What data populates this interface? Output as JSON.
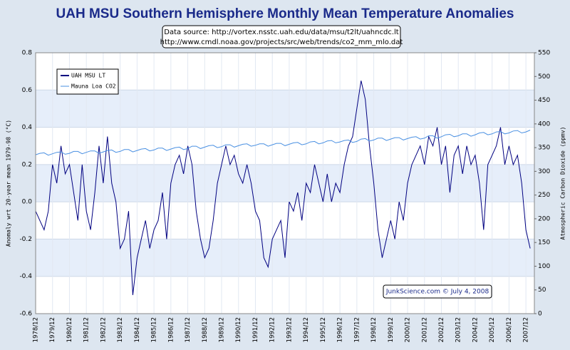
{
  "chart_data": {
    "type": "line",
    "title": "UAH MSU Southern Hemisphere Monthly Mean Temperature Anomalies",
    "subtitle": [
      "Data source: http://vortex.nsstc.uah.edu/data/msu/t2lt/uahncdc.lt",
      "http://www.cmdl.noaa.gov/projects/src/web/trends/co2_mm_mlo.dat"
    ],
    "y_label": "Anomaly wrt 20-year mean 1979-98 (°C)",
    "y2_label": "Atmospheric Carbon Dioxide (ppmv)",
    "annotations": [
      "JunkScience.com © July 4, 2008"
    ],
    "x": [
      "1978/12",
      "1979/03",
      "1979/06",
      "1979/09",
      "1979/12",
      "1980/03",
      "1980/06",
      "1980/09",
      "1980/12",
      "1981/03",
      "1981/06",
      "1981/09",
      "1981/12",
      "1982/03",
      "1982/06",
      "1982/09",
      "1982/12",
      "1983/03",
      "1983/06",
      "1983/09",
      "1983/12",
      "1984/03",
      "1984/06",
      "1984/09",
      "1984/12",
      "1985/03",
      "1985/06",
      "1985/09",
      "1985/12",
      "1986/03",
      "1986/06",
      "1986/09",
      "1986/12",
      "1987/03",
      "1987/06",
      "1987/09",
      "1987/12",
      "1988/03",
      "1988/06",
      "1988/09",
      "1988/12",
      "1989/03",
      "1989/06",
      "1989/09",
      "1989/12",
      "1990/03",
      "1990/06",
      "1990/09",
      "1990/12",
      "1991/03",
      "1991/06",
      "1991/09",
      "1991/12",
      "1992/03",
      "1992/06",
      "1992/09",
      "1992/12",
      "1993/03",
      "1993/06",
      "1993/09",
      "1993/12",
      "1994/03",
      "1994/06",
      "1994/09",
      "1994/12",
      "1995/03",
      "1995/06",
      "1995/09",
      "1995/12",
      "1996/03",
      "1996/06",
      "1996/09",
      "1996/12",
      "1997/03",
      "1997/06",
      "1997/09",
      "1997/12",
      "1998/03",
      "1998/06",
      "1998/09",
      "1998/12",
      "1999/03",
      "1999/06",
      "1999/09",
      "1999/12",
      "2000/03",
      "2000/06",
      "2000/09",
      "2000/12",
      "2001/03",
      "2001/06",
      "2001/09",
      "2001/12",
      "2002/03",
      "2002/06",
      "2002/09",
      "2002/12",
      "2003/03",
      "2003/06",
      "2003/09",
      "2003/12",
      "2004/03",
      "2004/06",
      "2004/09",
      "2004/12",
      "2005/03",
      "2005/06",
      "2005/09",
      "2005/12",
      "2006/03",
      "2006/06",
      "2006/09",
      "2006/12",
      "2007/03",
      "2007/06",
      "2007/09",
      "2007/12",
      "2008/03"
    ],
    "series": [
      {
        "name": "UAH MSU LT",
        "color": "#000080",
        "values": [
          -0.05,
          -0.1,
          -0.15,
          -0.05,
          0.2,
          0.1,
          0.3,
          0.15,
          0.2,
          0.05,
          -0.1,
          0.2,
          -0.05,
          -0.15,
          0.05,
          0.3,
          0.1,
          0.35,
          0.1,
          0.0,
          -0.25,
          -0.2,
          -0.05,
          -0.5,
          -0.3,
          -0.2,
          -0.1,
          -0.25,
          -0.15,
          -0.1,
          0.05,
          -0.2,
          0.1,
          0.2,
          0.25,
          0.15,
          0.3,
          0.2,
          -0.05,
          -0.2,
          -0.3,
          -0.25,
          -0.1,
          0.1,
          0.2,
          0.3,
          0.2,
          0.25,
          0.15,
          0.1,
          0.2,
          0.1,
          -0.05,
          -0.1,
          -0.3,
          -0.35,
          -0.2,
          -0.15,
          -0.1,
          -0.3,
          0.0,
          -0.05,
          0.05,
          -0.1,
          0.1,
          0.05,
          0.2,
          0.1,
          0.0,
          0.15,
          0.0,
          0.1,
          0.05,
          0.2,
          0.3,
          0.35,
          0.5,
          0.65,
          0.55,
          0.3,
          0.1,
          -0.15,
          -0.3,
          -0.2,
          -0.1,
          -0.2,
          0.0,
          -0.1,
          0.1,
          0.2,
          0.25,
          0.3,
          0.2,
          0.35,
          0.3,
          0.4,
          0.2,
          0.3,
          0.05,
          0.25,
          0.3,
          0.15,
          0.3,
          0.2,
          0.25,
          0.1,
          -0.15,
          0.2,
          0.25,
          0.3,
          0.4,
          0.2,
          0.3,
          0.2,
          0.25,
          0.1,
          -0.15,
          -0.25
        ]
      },
      {
        "name": "Mauna Loa CO2",
        "color": "#4a90e2",
        "axis": "y2",
        "values": [
          335,
          338,
          339,
          334,
          337,
          340,
          341,
          336,
          338,
          342,
          342,
          337,
          340,
          343,
          343,
          338,
          341,
          344,
          345,
          340,
          342,
          346,
          346,
          341,
          344,
          347,
          348,
          343,
          345,
          349,
          349,
          344,
          347,
          350,
          351,
          346,
          348,
          353,
          353,
          348,
          351,
          354,
          355,
          350,
          352,
          356,
          356,
          351,
          354,
          357,
          358,
          353,
          355,
          358,
          358,
          353,
          356,
          359,
          359,
          354,
          357,
          360,
          361,
          356,
          358,
          362,
          363,
          358,
          360,
          364,
          365,
          360,
          362,
          365,
          366,
          361,
          363,
          368,
          369,
          364,
          366,
          370,
          370,
          365,
          368,
          371,
          371,
          366,
          369,
          372,
          373,
          368,
          370,
          375,
          375,
          370,
          373,
          377,
          378,
          373,
          375,
          379,
          379,
          374,
          377,
          381,
          382,
          377,
          379,
          383,
          384,
          379,
          381,
          385,
          386,
          381,
          383,
          387
        ]
      }
    ],
    "xlim": [
      "1978/12",
      "2008/06"
    ],
    "xticks": [
      "1978/12",
      "1979/12",
      "1980/12",
      "1981/12",
      "1982/12",
      "1983/12",
      "1984/12",
      "1985/12",
      "1986/12",
      "1987/12",
      "1988/12",
      "1989/12",
      "1990/12",
      "1991/12",
      "1992/12",
      "1993/12",
      "1994/12",
      "1995/12",
      "1996/12",
      "1997/12",
      "1998/12",
      "1999/12",
      "2000/12",
      "2001/12",
      "2002/12",
      "2003/12",
      "2004/12",
      "2005/12",
      "2006/12",
      "2007/12"
    ],
    "ylim": [
      -0.6,
      0.8
    ],
    "yticks": [
      -0.6,
      -0.4,
      -0.2,
      {
        "value": 0,
        "label": "0.0"
      },
      0.2,
      0.4,
      0.6,
      0.8
    ],
    "y2lim": [
      0,
      550
    ],
    "y2ticks": [
      0,
      50,
      100,
      150,
      200,
      250,
      300,
      350,
      400,
      450,
      500,
      550
    ],
    "grid": true,
    "legend": "upper left"
  }
}
